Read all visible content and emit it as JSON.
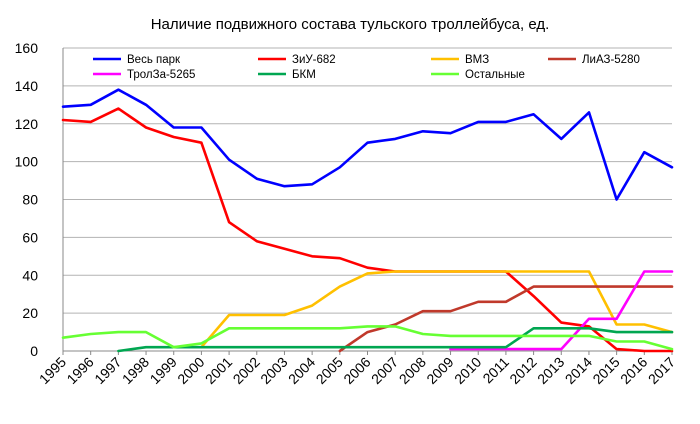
{
  "chart_data": {
    "type": "line",
    "title": "Наличие подвижного состава тульского троллейбуса, ед.",
    "xlabel": "",
    "ylabel": "",
    "ylim": [
      0,
      160
    ],
    "yticks": [
      0,
      20,
      40,
      60,
      80,
      100,
      120,
      140,
      160
    ],
    "grid": true,
    "legend_position": "top",
    "categories": [
      "1995",
      "1996",
      "1997",
      "1998",
      "1999",
      "2000",
      "2001",
      "2002",
      "2003",
      "2004",
      "2005",
      "2006",
      "2007",
      "2008",
      "2009",
      "2010",
      "2011",
      "2012",
      "2013",
      "2014",
      "2015",
      "2016",
      "2017"
    ],
    "series": [
      {
        "name": "Весь парк",
        "color": "#0000ff",
        "values": [
          129,
          130,
          138,
          130,
          118,
          118,
          101,
          91,
          87,
          88,
          97,
          110,
          112,
          116,
          115,
          121,
          121,
          125,
          112,
          126,
          80,
          105,
          97
        ]
      },
      {
        "name": "ЗиУ-682",
        "color": "#ff0000",
        "values": [
          122,
          121,
          128,
          118,
          113,
          110,
          68,
          58,
          54,
          50,
          49,
          44,
          42,
          42,
          42,
          42,
          42,
          29,
          15,
          13,
          1,
          0,
          0
        ]
      },
      {
        "name": "ВМЗ",
        "color": "#ffc000",
        "values": [
          null,
          null,
          null,
          null,
          null,
          2,
          19,
          19,
          19,
          24,
          34,
          41,
          42,
          42,
          42,
          42,
          42,
          42,
          42,
          42,
          14,
          14,
          10
        ]
      },
      {
        "name": "ЛиАЗ-5280",
        "color": "#c0392b",
        "values": [
          null,
          null,
          null,
          null,
          null,
          null,
          null,
          null,
          null,
          null,
          0,
          10,
          14,
          21,
          21,
          26,
          26,
          34,
          34,
          34,
          34,
          34,
          34
        ]
      },
      {
        "name": "ТролЗа-5265",
        "color": "#ff00ff",
        "values": [
          null,
          null,
          null,
          null,
          null,
          null,
          null,
          null,
          null,
          null,
          null,
          null,
          null,
          null,
          1,
          1,
          1,
          1,
          1,
          17,
          17,
          42,
          42
        ]
      },
      {
        "name": "БКМ",
        "color": "#00a651",
        "values": [
          null,
          null,
          0,
          2,
          2,
          2,
          2,
          2,
          2,
          2,
          2,
          2,
          2,
          2,
          2,
          2,
          2,
          12,
          12,
          12,
          10,
          10,
          10
        ]
      },
      {
        "name": "Остальные",
        "color": "#66ff33",
        "values": [
          7,
          9,
          10,
          10,
          2,
          4,
          12,
          12,
          12,
          12,
          12,
          13,
          13,
          9,
          8,
          8,
          8,
          8,
          8,
          8,
          5,
          5,
          1
        ]
      }
    ]
  }
}
